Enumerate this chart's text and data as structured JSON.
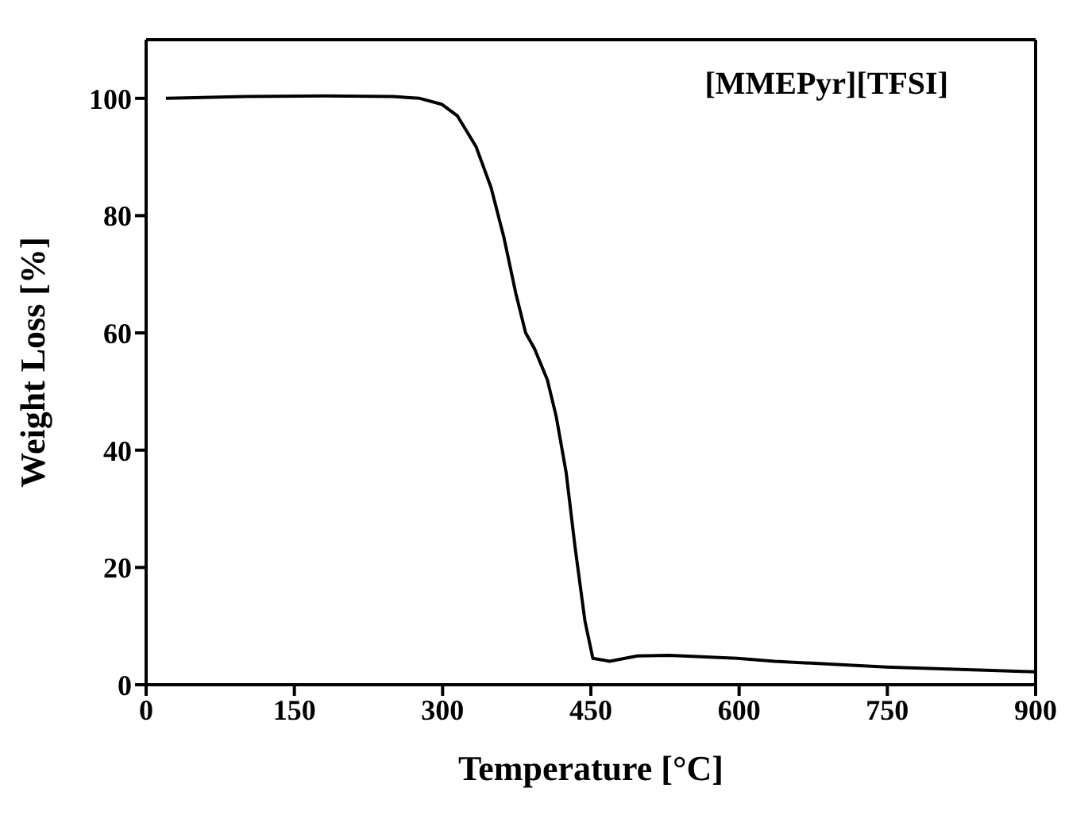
{
  "chart_data": {
    "type": "line",
    "xlabel": "Temperature [°C]",
    "ylabel": "Weight Loss [%]",
    "annotations": [
      "[MMEPyr][TFSI]"
    ],
    "xlim": [
      0,
      900
    ],
    "xticks": [
      0,
      150,
      300,
      450,
      600,
      750,
      900
    ],
    "ylim": [
      0,
      110
    ],
    "yticks": [
      0,
      20,
      40,
      60,
      80,
      100
    ],
    "marker": "none",
    "line_style": "solid",
    "series": [
      {
        "color": "#000000",
        "x": [
          20,
          100,
          180,
          250,
          277,
          299,
          315,
          334,
          349,
          362,
          374,
          384,
          393,
          406,
          415,
          425,
          434,
          444,
          452,
          469,
          497,
          529,
          598,
          636,
          749,
          900
        ],
        "values": [
          100,
          100.3,
          100.4,
          100.3,
          100,
          99,
          97,
          91.7,
          84.8,
          76.3,
          66.8,
          60,
          57.3,
          52,
          45.7,
          36.2,
          23.5,
          10.9,
          4.5,
          4,
          4.9,
          5,
          4.5,
          4,
          3,
          2.2
        ]
      }
    ]
  }
}
